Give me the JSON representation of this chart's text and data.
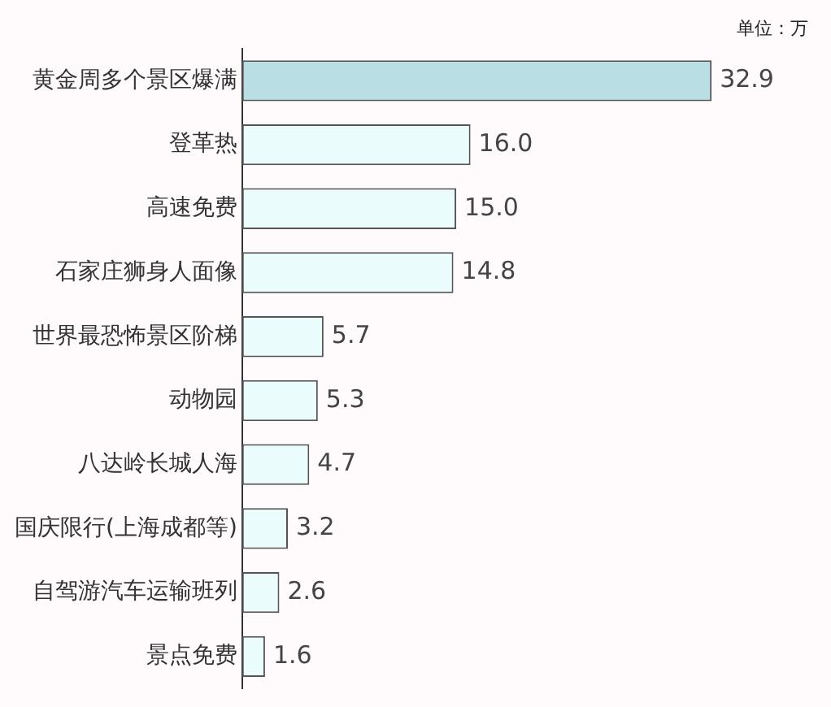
{
  "chart_data": {
    "type": "bar",
    "orientation": "horizontal",
    "categories": [
      "黄金周多个景区爆满",
      "登革热",
      "高速免费",
      "石家庄狮身人面像",
      "世界最恐怖景区阶梯",
      "动物园",
      "八达岭长城人海",
      "国庆限行(上海成都等)",
      "自驾游汽车运输班列",
      "景点免费"
    ],
    "values": [
      32.9,
      16.0,
      15.0,
      14.8,
      5.7,
      5.3,
      4.7,
      3.2,
      2.6,
      1.6
    ],
    "colors": [
      "#b9dfe4",
      "#eafcfc",
      "#eafcfc",
      "#eafcfc",
      "#eafcfc",
      "#eafcfc",
      "#eafcfc",
      "#eafcfc",
      "#eafcfc",
      "#eafcfc"
    ],
    "value_labels": [
      "32.9",
      "16.0",
      "15.0",
      "14.8",
      "5.7",
      "5.3",
      "4.7",
      "3.2",
      "2.6",
      "1.6"
    ],
    "annotations": [
      "单位：万"
    ],
    "legend": false
  }
}
